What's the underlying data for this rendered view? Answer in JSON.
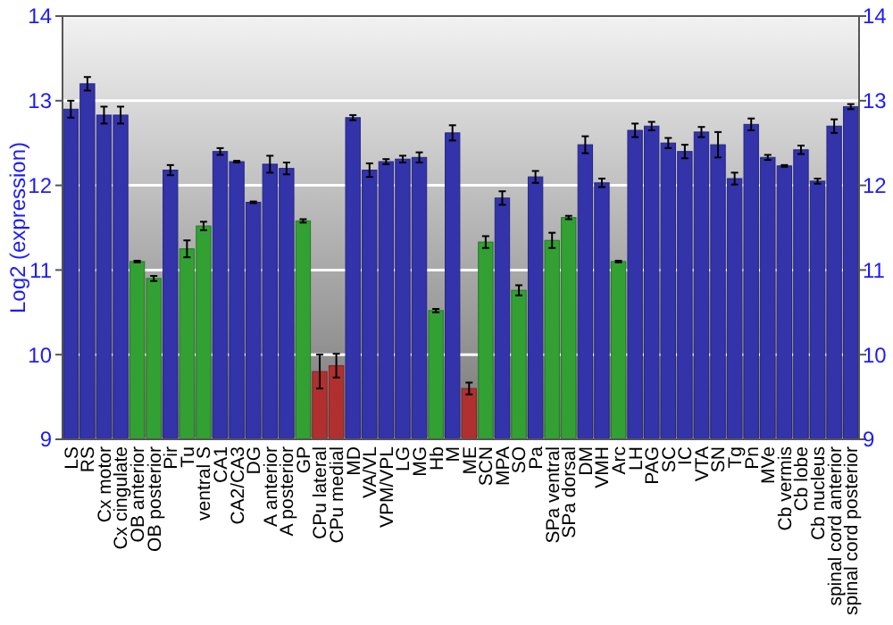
{
  "chart_data": {
    "type": "bar",
    "ylabel": "Log2 (expression)",
    "categories": [
      "LS",
      "RS",
      "Cx motor",
      "Cx cingulate",
      "OB anterior",
      "OB posterior",
      "Pir",
      "Tu",
      "ventral S",
      "CA1",
      "CA2/CA3",
      "DG",
      "A anterior",
      "A posterior",
      "GP",
      "CPu lateral",
      "CPu medial",
      "MD",
      "VA/VL",
      "VPM/VPL",
      "LG",
      "MG",
      "Hb",
      "M",
      "ME",
      "SCN",
      "MPA",
      "SO",
      "Pa",
      "SPa ventral",
      "SPa dorsal",
      "DM",
      "VMH",
      "Arc",
      "LH",
      "PAG",
      "SC",
      "IC",
      "VTA",
      "SN",
      "Tg",
      "Pn",
      "MVe",
      "Cb vermis",
      "Cb lobe",
      "Cb nucleus",
      "spinal cord anterior",
      "spinal cord posterior"
    ],
    "values": [
      12.9,
      13.2,
      12.83,
      12.83,
      11.1,
      10.9,
      12.18,
      11.25,
      11.52,
      12.4,
      12.28,
      11.8,
      12.25,
      12.2,
      11.58,
      9.8,
      9.87,
      12.8,
      12.18,
      12.28,
      12.31,
      12.33,
      10.52,
      12.62,
      9.6,
      11.33,
      11.85,
      10.76,
      12.1,
      11.35,
      11.62,
      12.48,
      12.03,
      11.1,
      12.65,
      12.7,
      12.5,
      12.4,
      12.63,
      12.48,
      12.08,
      12.72,
      12.33,
      12.23,
      12.42,
      12.05,
      12.7,
      12.93
    ],
    "errors": [
      0.1,
      0.08,
      0.1,
      0.1,
      0.01,
      0.03,
      0.06,
      0.1,
      0.05,
      0.04,
      0.01,
      0.01,
      0.1,
      0.07,
      0.02,
      0.2,
      0.14,
      0.03,
      0.08,
      0.03,
      0.04,
      0.06,
      0.02,
      0.09,
      0.07,
      0.07,
      0.08,
      0.06,
      0.07,
      0.09,
      0.02,
      0.1,
      0.05,
      0.01,
      0.08,
      0.05,
      0.06,
      0.08,
      0.06,
      0.15,
      0.07,
      0.07,
      0.03,
      0.01,
      0.05,
      0.03,
      0.08,
      0.03
    ],
    "colors": [
      "#3333aa",
      "#3333aa",
      "#3333aa",
      "#3333aa",
      "#33a033",
      "#33a033",
      "#3333aa",
      "#33a033",
      "#33a033",
      "#3333aa",
      "#3333aa",
      "#3333aa",
      "#3333aa",
      "#3333aa",
      "#33a033",
      "#b03030",
      "#b03030",
      "#3333aa",
      "#3333aa",
      "#3333aa",
      "#3333aa",
      "#3333aa",
      "#33a033",
      "#3333aa",
      "#b03030",
      "#33a033",
      "#3333aa",
      "#33a033",
      "#3333aa",
      "#33a033",
      "#33a033",
      "#3333aa",
      "#3333aa",
      "#33a033",
      "#3333aa",
      "#3333aa",
      "#3333aa",
      "#3333aa",
      "#3333aa",
      "#3333aa",
      "#3333aa",
      "#3333aa",
      "#3333aa",
      "#3333aa",
      "#3333aa",
      "#3333aa",
      "#3333aa",
      "#3333aa"
    ],
    "ylim": [
      9,
      14
    ],
    "yticks": [
      9,
      10,
      11,
      12,
      13,
      14
    ],
    "y2lim": [
      9,
      14
    ],
    "y2ticks": [
      9,
      10,
      11,
      12,
      13,
      14
    ],
    "grid": "y"
  }
}
